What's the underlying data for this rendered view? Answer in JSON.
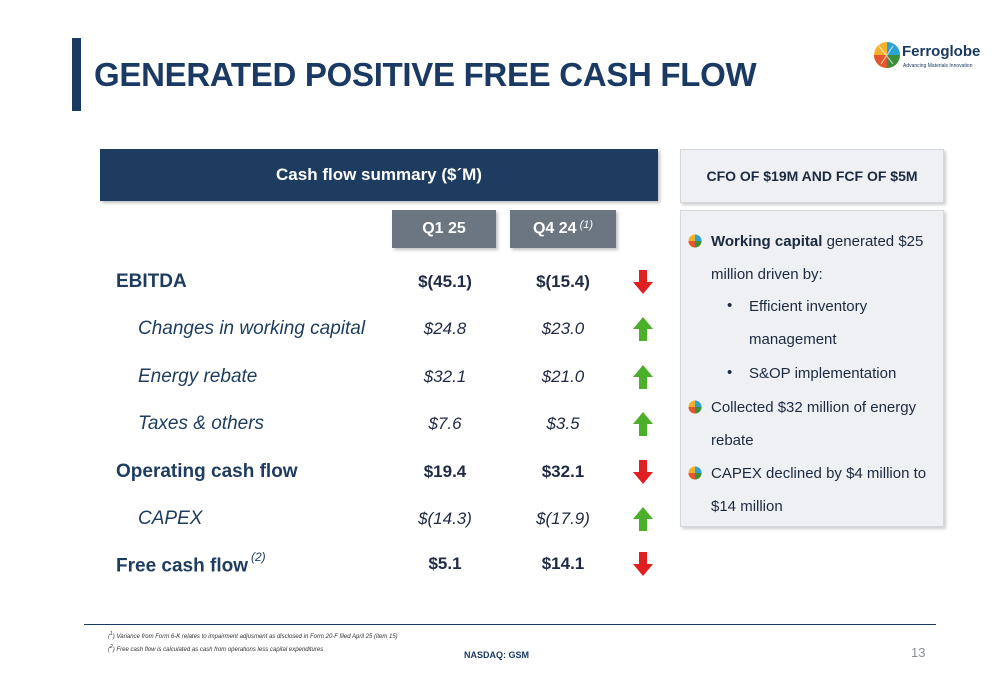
{
  "page": {
    "title": "GENERATED POSITIVE FREE CASH FLOW",
    "logo_name": "Ferroglobe",
    "logo_tagline": "Advancing Materials Innovation",
    "page_number": "13",
    "exchange": "NASDAQ: GSM"
  },
  "table": {
    "header": "Cash flow summary ($´M)",
    "col1": "Q1 25",
    "col2": "Q4 24",
    "col2_note": "(1)",
    "rows": [
      {
        "label": "EBITDA",
        "q1": "$(45.1)",
        "q4": "$(15.4)",
        "trend": "down"
      },
      {
        "label": "Changes in working capital",
        "q1": "$24.8",
        "q4": "$23.0",
        "trend": "up"
      },
      {
        "label": "Energy rebate",
        "q1": "$32.1",
        "q4": "$21.0",
        "trend": "up"
      },
      {
        "label": "Taxes & others",
        "q1": "$7.6",
        "q4": "$3.5",
        "trend": "up"
      },
      {
        "label": "Operating cash flow",
        "q1": "$19.4",
        "q4": "$32.1",
        "trend": "down"
      },
      {
        "label": "CAPEX",
        "q1": "$(14.3)",
        "q4": "$(17.9)",
        "trend": "up"
      },
      {
        "label": "Free cash flow",
        "note": "(2)",
        "q1": "$5.1",
        "q4": "$14.1",
        "trend": "down"
      }
    ]
  },
  "colors": {
    "navy": "#1b3a63",
    "arrow_up": "#4caf2a",
    "arrow_down": "#e02020",
    "col_head": "#6b7680"
  },
  "right_panel": {
    "title": "CFO OF $19M AND FCF OF $5M",
    "b1_bold": "Working capital",
    "b1_line1": " generated $25",
    "b1_line2": "million driven by:",
    "s1_line1": "Efficient inventory",
    "s1_line2": "management",
    "s2": "S&OP implementation",
    "b2_line1": "Collected $32 million of energy",
    "b2_line2": "rebate",
    "b3_line1": "CAPEX declined by $4 million to",
    "b3_line2": "$14 million"
  },
  "footnotes": {
    "f1_mark": "1",
    "f1": "Variance from Form 6-K relates to impairment adjusment as disclosed in Form 20-F filed April 25 (item 15)",
    "f2_mark": "2",
    "f2": "Free cash flow is calculated as cash from operations less capital expenditures"
  }
}
